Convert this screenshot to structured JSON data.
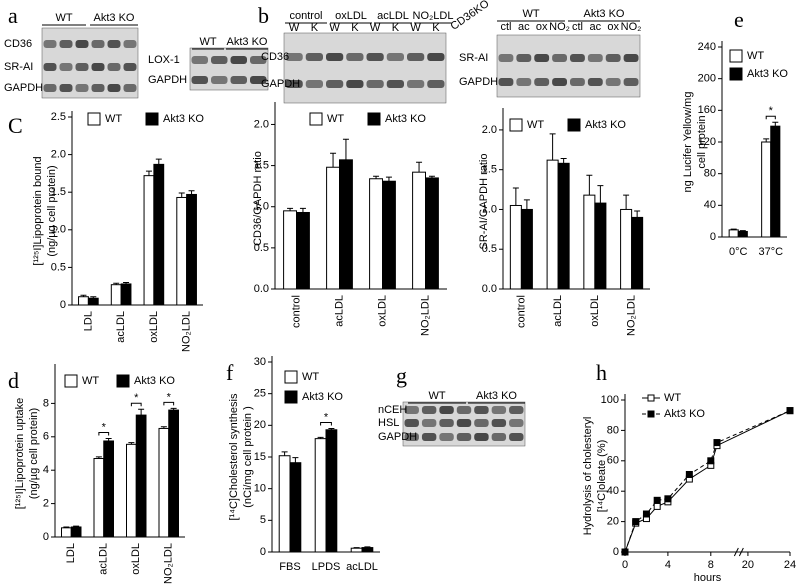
{
  "panels": [
    "a",
    "b",
    "g"
  ],
  "blots": {
    "a1": {
      "groups": [
        "WT",
        "Akt3 KO"
      ],
      "rows": [
        "CD36",
        "SR-AI",
        "GAPDH"
      ]
    },
    "a2": {
      "groups": [
        "WT",
        "Akt3 KO"
      ],
      "rows": [
        "LOX-1",
        "GAPDH"
      ]
    },
    "b1": {
      "groups": [
        "control",
        "oxLDL",
        "acLDL",
        "NO₂LDL"
      ],
      "lanes": [
        "W",
        "K",
        "W",
        "K",
        "W",
        "K",
        "W",
        "K"
      ],
      "note": "CD36KO",
      "rows": [
        "CD36",
        "GAPDH"
      ]
    },
    "b2": {
      "groups": [
        "WT",
        "Akt3 KO"
      ],
      "lanes": [
        "ctl",
        "ac",
        "ox",
        "NO₂",
        "ctl",
        "ac",
        "ox",
        "NO₂"
      ],
      "rows": [
        "SR-AI",
        "GAPDH"
      ]
    },
    "g": {
      "groups": [
        "WT",
        "Akt3 KO"
      ],
      "rows": [
        "nCEH",
        "HSL",
        "GAPDH"
      ]
    }
  },
  "chart_data": [
    {
      "type": "bar",
      "panel": "C",
      "ylabel": [
        "[¹²⁵I]Lipoprotein bound",
        "(ng/µg cell protein)"
      ],
      "categories": [
        "LDL",
        "acLDL",
        "oxLDL",
        "NO₂LDL"
      ],
      "series": [
        {
          "name": "WT",
          "color": "#ffffff",
          "values": [
            0.11,
            0.27,
            1.72,
            1.43
          ],
          "errors": [
            0.02,
            0.02,
            0.06,
            0.06
          ]
        },
        {
          "name": "Akt3 KO",
          "color": "#000000",
          "values": [
            0.09,
            0.28,
            1.87,
            1.47
          ],
          "errors": [
            0.02,
            0.02,
            0.07,
            0.05
          ]
        }
      ],
      "ylim": [
        0,
        2.5
      ],
      "yticks": [
        0,
        0.5,
        {
          "value": 1,
          "label": "1.0"
        },
        1.5,
        {
          "value": 2,
          "label": "2.0"
        },
        2.5
      ]
    },
    {
      "type": "bar",
      "ylabel": [
        "CD36/GAPDH ratio"
      ],
      "categories": [
        "control",
        "acLDL",
        "oxLDL",
        "NO₂LDL"
      ],
      "series": [
        {
          "name": "WT",
          "color": "#ffffff",
          "values": [
            0.95,
            1.48,
            1.34,
            1.42
          ],
          "errors": [
            0.03,
            0.17,
            0.03,
            0.12
          ]
        },
        {
          "name": "Akt3 KO",
          "color": "#000000",
          "values": [
            0.93,
            1.57,
            1.31,
            1.35
          ],
          "errors": [
            0.05,
            0.25,
            0.05,
            0.02
          ]
        }
      ],
      "ylim": [
        0,
        2.2
      ],
      "yticks": [
        {
          "value": 0,
          "label": "0.0"
        },
        0.5,
        {
          "value": 1,
          "label": "1.0"
        },
        1.5,
        {
          "value": 2,
          "label": "2.0"
        }
      ]
    },
    {
      "type": "bar",
      "ylabel": [
        "SR-AI/GAPDH ratio"
      ],
      "categories": [
        "control",
        "acLDL",
        "oxLDL",
        "NO₂LDL"
      ],
      "series": [
        {
          "name": "WT",
          "color": "#ffffff",
          "values": [
            1.05,
            1.62,
            1.18,
            1.0
          ],
          "errors": [
            0.22,
            0.33,
            0.25,
            0.18
          ]
        },
        {
          "name": "Akt3 KO",
          "color": "#000000",
          "values": [
            1.0,
            1.58,
            1.08,
            0.9
          ],
          "errors": [
            0.12,
            0.06,
            0.22,
            0.08
          ]
        }
      ],
      "ylim": [
        0,
        2.2
      ],
      "yticks": [
        {
          "value": 0,
          "label": "0.0"
        },
        0.5,
        {
          "value": 1,
          "label": "1.0"
        },
        1.5,
        {
          "value": 2,
          "label": "2.0"
        }
      ]
    },
    {
      "type": "bar",
      "panel": "e",
      "ylabel": [
        "ng Lucifer Yellow/mg",
        "cell protein"
      ],
      "categories": [
        "0°C",
        "37°C"
      ],
      "series": [
        {
          "name": "WT",
          "color": "#ffffff",
          "values": [
            9,
            120
          ],
          "errors": [
            1,
            4
          ]
        },
        {
          "name": "Akt3 KO",
          "color": "#000000",
          "values": [
            7,
            140
          ],
          "errors": [
            1,
            5
          ]
        }
      ],
      "ylim": [
        0,
        240
      ],
      "yticks": [
        0,
        40,
        80,
        120,
        160,
        200,
        240
      ],
      "annotations": [
        {
          "text": "*",
          "x": "37°C"
        }
      ]
    },
    {
      "type": "bar",
      "panel": "d",
      "ylabel": [
        "[¹²⁵I]Lipoprotein uptake",
        "(ng/µg cell protein)"
      ],
      "categories": [
        "LDL",
        "acLDL",
        "oxLDL",
        "NO₂LDL"
      ],
      "series": [
        {
          "name": "WT",
          "color": "#ffffff",
          "values": [
            0.55,
            4.7,
            5.55,
            6.5
          ],
          "errors": [
            0.05,
            0.1,
            0.1,
            0.1
          ]
        },
        {
          "name": "Akt3 KO",
          "color": "#000000",
          "values": [
            0.6,
            5.75,
            7.3,
            7.6
          ],
          "errors": [
            0.05,
            0.15,
            0.35,
            0.1
          ]
        }
      ],
      "ylim": [
        0,
        10
      ],
      "yticks": [
        0,
        2,
        4,
        6,
        8
      ],
      "annotations": [
        {
          "text": "*",
          "x": "acLDL"
        },
        {
          "text": "*",
          "x": "oxLDL"
        },
        {
          "text": "*",
          "x": "NO₂LDL"
        }
      ]
    },
    {
      "type": "bar",
      "panel": "f",
      "ylabel": [
        "[¹⁴C]Cholesterol synthesis",
        "(nCi/mg cell protein )"
      ],
      "categories": [
        "FBS",
        "LPDS",
        "acLDL"
      ],
      "series": [
        {
          "name": "WT",
          "color": "#ffffff",
          "values": [
            15.2,
            17.9,
            0.6
          ],
          "errors": [
            0.6,
            0.2,
            0.1
          ]
        },
        {
          "name": "Akt3 KO",
          "color": "#000000",
          "values": [
            14.1,
            19.3,
            0.7
          ],
          "errors": [
            0.8,
            0.2,
            0.1
          ]
        }
      ],
      "ylim": [
        0,
        30
      ],
      "yticks": [
        0,
        5,
        10,
        15,
        20,
        25,
        30
      ],
      "annotations": [
        {
          "text": "*",
          "x": "LPDS"
        }
      ]
    },
    {
      "type": "line",
      "panel": "h",
      "ylabel": [
        "Hydrolysis of cholesteryl",
        "[¹⁴C]oleate (%)"
      ],
      "xlabel": "hours",
      "x": [
        0,
        1,
        2,
        3,
        4,
        6,
        8,
        10,
        24
      ],
      "series": [
        {
          "name": "WT",
          "color": "#ffffff",
          "linestyle": "solid",
          "values": [
            0,
            19,
            22,
            30,
            33,
            48,
            57,
            70,
            93
          ]
        },
        {
          "name": "Akt3 KO",
          "color": "#000000",
          "linestyle": "dashed",
          "values": [
            0,
            20,
            25,
            34,
            35,
            51,
            60,
            72,
            93
          ]
        }
      ],
      "xlim": [
        0,
        24
      ],
      "xticks": [
        0,
        4,
        8,
        20,
        24
      ],
      "ylim": [
        0,
        100
      ],
      "yticks": [
        0,
        20,
        40,
        60,
        80,
        100
      ]
    }
  ]
}
